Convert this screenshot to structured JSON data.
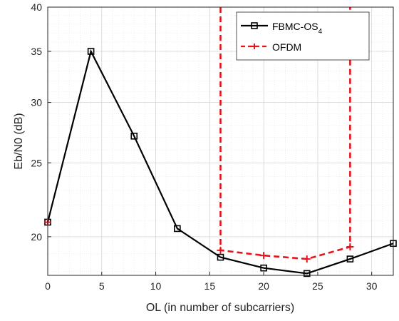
{
  "chart_data": {
    "type": "line",
    "title": "",
    "xlabel": "OL (in number of subcarriers)",
    "ylabel": "Eb/N0 (dB)",
    "xlim": [
      0,
      32
    ],
    "ylim_note": "log scale",
    "y_scale": "log",
    "ylim": [
      17.8,
      40
    ],
    "grid": true,
    "minor_grid": true,
    "x_ticks": [
      0,
      5,
      10,
      15,
      20,
      25,
      30
    ],
    "y_ticks": [
      20,
      25,
      30,
      35,
      40
    ],
    "legend_position": "top-right",
    "series": [
      {
        "name": "FBMC-OS",
        "name_subscript": "4",
        "color": "#000000",
        "line_style": "solid",
        "marker": "square",
        "x": [
          0,
          4,
          8,
          12,
          16,
          20,
          24,
          28,
          32
        ],
        "y": [
          20.9,
          35.0,
          27.1,
          20.5,
          18.8,
          18.2,
          17.9,
          18.7,
          19.6
        ]
      },
      {
        "name": "OFDM",
        "color": "#e8141b",
        "line_style": "dashed",
        "marker": "plus",
        "x": [
          0,
          16,
          20,
          24,
          28
        ],
        "y": [
          20.9,
          19.2,
          18.9,
          18.7,
          19.4
        ],
        "x_full": [
          0,
          16,
          16,
          20,
          24,
          28,
          28
        ],
        "y_full": [
          20.9,
          40,
          19.2,
          18.9,
          18.7,
          19.4,
          40
        ],
        "vertical_to_top_at_x": [
          16,
          28
        ]
      }
    ]
  }
}
